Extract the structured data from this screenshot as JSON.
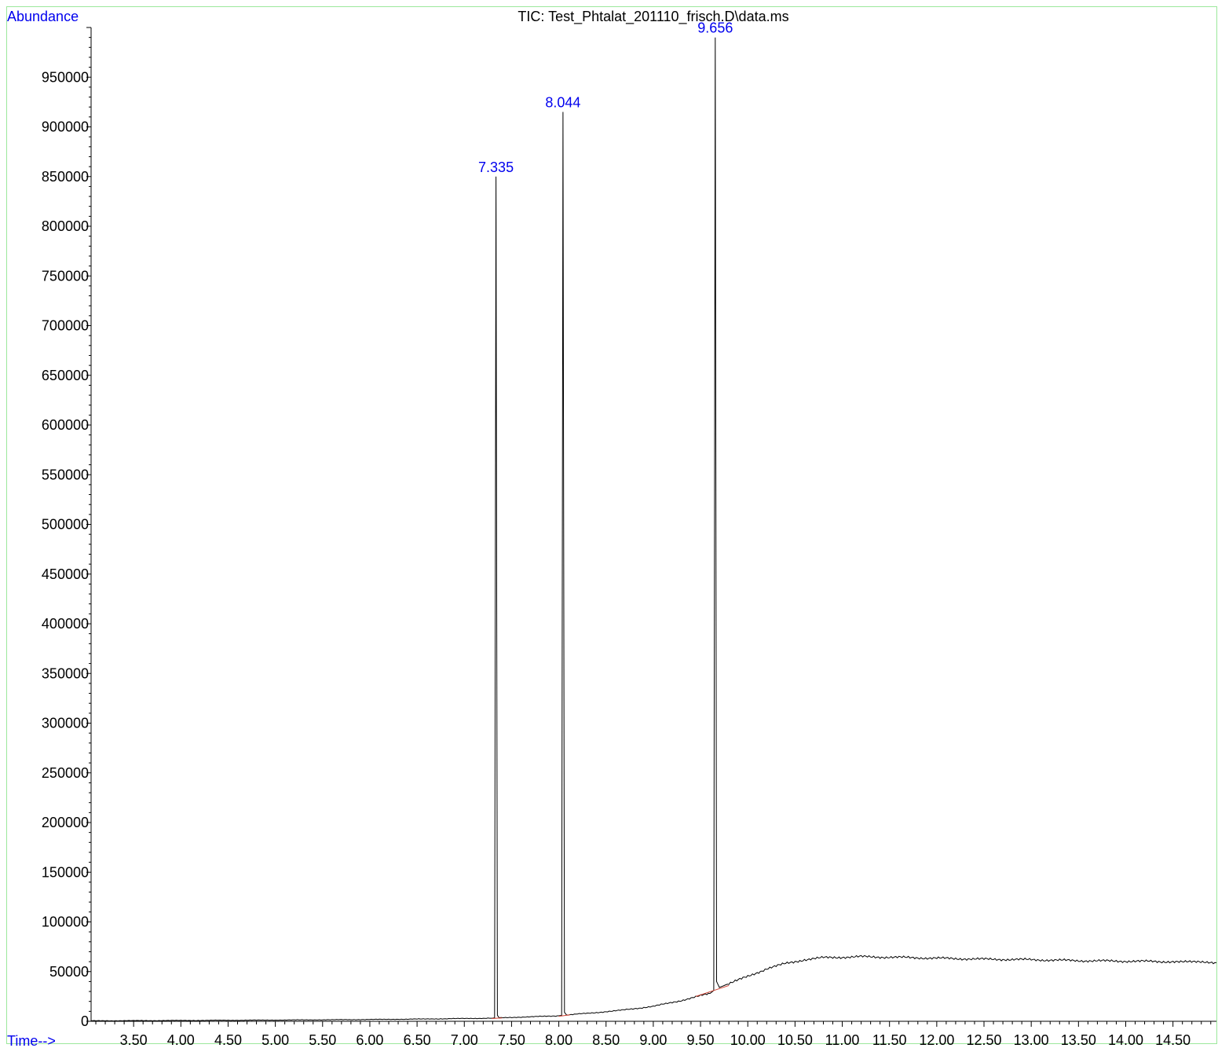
{
  "chart_data": {
    "type": "line",
    "title": "TIC: Test_Phtalat_201110_frisch.D\\data.ms",
    "ylabel": "Abundance",
    "xlabel": "Time-->",
    "xlim": [
      3.05,
      14.96
    ],
    "ylim": [
      0,
      1000000
    ],
    "y_ticks": [
      0,
      50000,
      100000,
      150000,
      200000,
      250000,
      300000,
      350000,
      400000,
      450000,
      500000,
      550000,
      600000,
      650000,
      700000,
      750000,
      800000,
      850000,
      900000,
      950000
    ],
    "x_ticks": [
      "3.50",
      "4.00",
      "4.50",
      "5.00",
      "5.50",
      "6.00",
      "6.50",
      "7.00",
      "7.50",
      "8.00",
      "8.50",
      "9.00",
      "9.50",
      "10.00",
      "10.50",
      "11.00",
      "11.50",
      "12.00",
      "12.50",
      "13.00",
      "13.50",
      "14.00",
      "14.50"
    ],
    "grid": false,
    "legend": "none",
    "series": [
      {
        "x": [
          3.05,
          4.0,
          5.0,
          6.0,
          6.5,
          7.0,
          7.3,
          7.32,
          7.335,
          7.35,
          7.37,
          7.6,
          8.0,
          8.03,
          8.044,
          8.06,
          8.08,
          8.3,
          8.6,
          9.0,
          9.3,
          9.6,
          9.64,
          9.656,
          9.67,
          9.7,
          9.8,
          10.0,
          10.2,
          10.4,
          10.6,
          10.8,
          11.0,
          11.2,
          11.5,
          12.0,
          12.5,
          13.0,
          13.5,
          14.0,
          14.5,
          14.96
        ],
        "y": [
          500,
          800,
          1200,
          1800,
          2200,
          2800,
          3200,
          3500,
          850000,
          6000,
          3600,
          4200,
          5500,
          6000,
          915000,
          9000,
          6500,
          8000,
          10500,
          15000,
          21000,
          28000,
          31000,
          990000,
          40000,
          34000,
          38000,
          45000,
          53000,
          58000,
          62000,
          64000,
          64500,
          65000,
          64500,
          63500,
          62500,
          62000,
          61000,
          60500,
          60000,
          59000
        ]
      }
    ],
    "baselines": [
      {
        "x": [
          7.29,
          7.4
        ],
        "y": [
          2800,
          3400
        ]
      },
      {
        "x": [
          8.0,
          8.12
        ],
        "y": [
          5000,
          6500
        ]
      },
      {
        "x": [
          9.45,
          9.8
        ],
        "y": [
          25000,
          36000
        ]
      }
    ],
    "annotations": [
      {
        "x": 7.335,
        "y": 850000,
        "text": "7.335"
      },
      {
        "x": 8.044,
        "y": 915000,
        "text": "8.044"
      },
      {
        "x": 9.656,
        "y": 990000,
        "text": "9.656"
      }
    ]
  }
}
